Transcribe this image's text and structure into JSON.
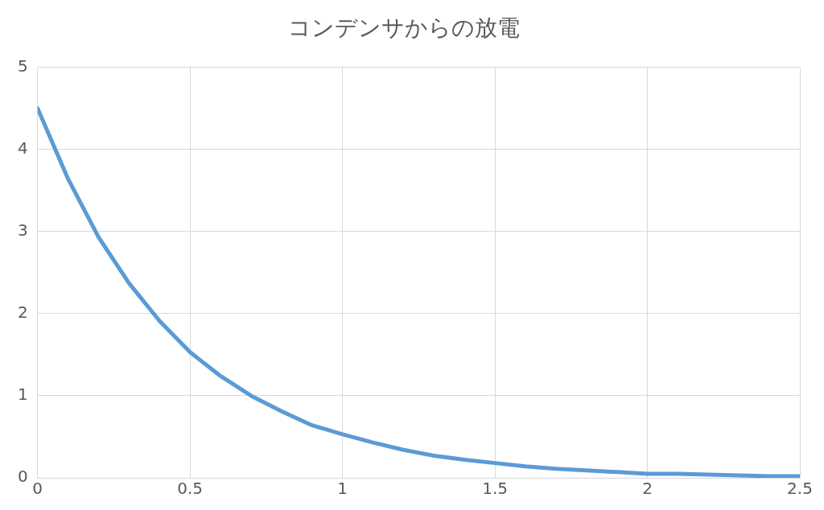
{
  "chart_data": {
    "type": "line",
    "title": "コンデンサからの放電",
    "x": [
      0,
      0.1,
      0.2,
      0.3,
      0.4,
      0.5,
      0.6,
      0.7,
      0.8,
      0.9,
      1,
      1.1,
      1.2,
      1.3,
      1.4,
      1.5,
      1.6,
      1.7,
      1.8,
      1.9,
      2,
      2.1,
      2.2,
      2.3,
      2.4,
      2.5
    ],
    "series": [
      {
        "color": "#5b9bd5",
        "values": [
          4.5,
          3.64,
          2.93,
          2.37,
          1.91,
          1.53,
          1.24,
          1.0,
          0.81,
          0.64,
          0.53,
          0.43,
          0.34,
          0.27,
          0.22,
          0.18,
          0.14,
          0.11,
          0.09,
          0.07,
          0.05,
          0.05,
          0.04,
          0.03,
          0.02,
          0.02
        ]
      }
    ],
    "xlim": [
      0,
      2.5
    ],
    "xticks": [
      0,
      0.5,
      1,
      1.5,
      2,
      2.5
    ],
    "ylim": [
      0,
      5
    ],
    "yticks": [
      0,
      1,
      2,
      3,
      4,
      5
    ],
    "grid": true,
    "legend": false,
    "marker": "none",
    "line_style": "solid"
  }
}
